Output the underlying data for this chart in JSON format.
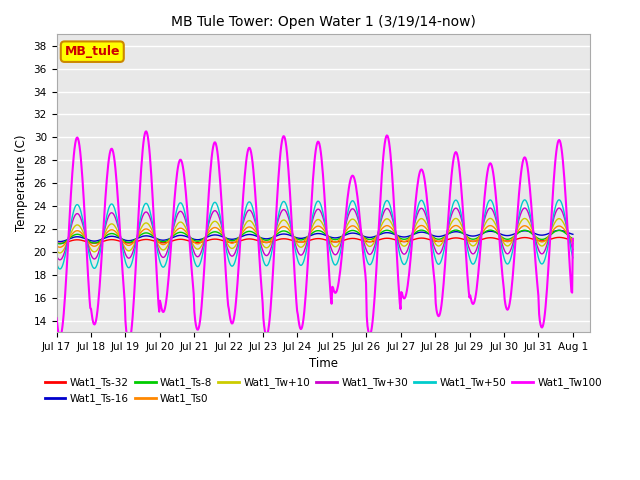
{
  "title": "MB Tule Tower: Open Water 1 (3/19/14-now)",
  "xlabel": "Time",
  "ylabel": "Temperature (C)",
  "ylim": [
    13,
    39
  ],
  "yticks": [
    14,
    16,
    18,
    20,
    22,
    24,
    26,
    28,
    30,
    32,
    34,
    36,
    38
  ],
  "xlim_days": [
    0,
    15.5
  ],
  "x_tick_labels": [
    "Jul 17",
    "Jul 18",
    "Jul 19",
    "Jul 20",
    "Jul 21",
    "Jul 22",
    "Jul 23",
    "Jul 24",
    "Jul 25",
    "Jul 26",
    "Jul 27",
    "Jul 28",
    "Jul 29",
    "Jul 30",
    "Jul 31",
    "Aug 1"
  ],
  "x_tick_positions": [
    0,
    1,
    2,
    3,
    4,
    5,
    6,
    7,
    8,
    9,
    10,
    11,
    12,
    13,
    14,
    15
  ],
  "legend_box_text": "MB_tule",
  "legend_box_color": "#ffff00",
  "legend_box_border": "#cc8800",
  "legend_box_text_color": "#cc0000",
  "background_color": "#ffffff",
  "plot_bg_color": "#e8e8e8",
  "grid_color": "#ffffff",
  "series": [
    {
      "label": "Wat1_Ts-32",
      "color": "#ff0000"
    },
    {
      "label": "Wat1_Ts-16",
      "color": "#0000cc"
    },
    {
      "label": "Wat1_Ts-8",
      "color": "#00cc00"
    },
    {
      "label": "Wat1_Ts0",
      "color": "#ff8800"
    },
    {
      "label": "Wat1_Tw+10",
      "color": "#cccc00"
    },
    {
      "label": "Wat1_Tw+30",
      "color": "#cc00cc"
    },
    {
      "label": "Wat1_Tw+50",
      "color": "#00cccc"
    },
    {
      "label": "Wat1_Tw100",
      "color": "#ff00ff"
    }
  ]
}
